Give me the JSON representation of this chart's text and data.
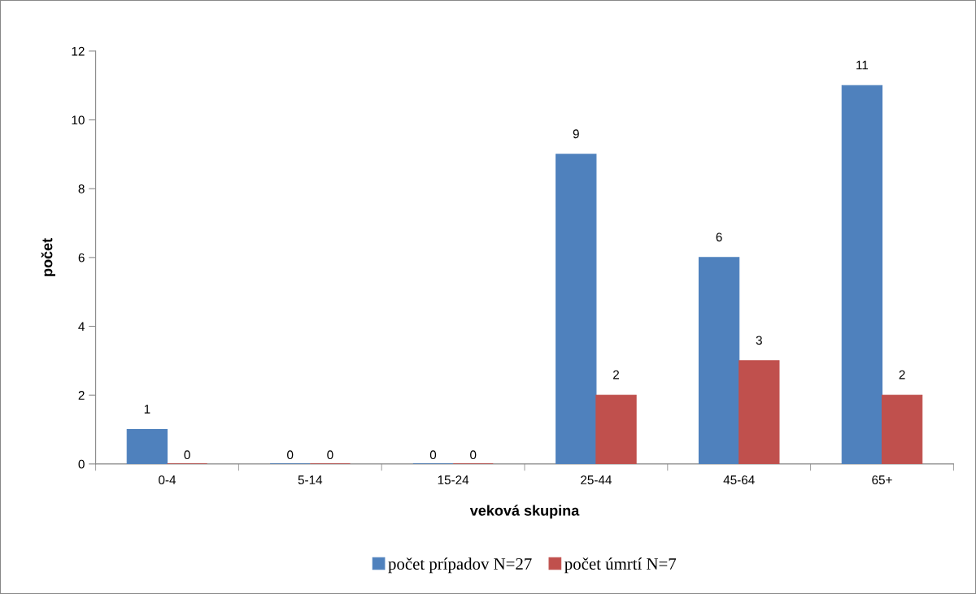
{
  "chart_data": {
    "type": "bar",
    "xlabel": "veková skupina",
    "ylabel": "počet",
    "categories": [
      "0-4",
      "5-14",
      "15-24",
      "25-44",
      "45-64",
      "65+"
    ],
    "series": [
      {
        "name": "počet prípadov N=27",
        "color": "#4f81bd",
        "values": [
          1,
          0,
          0,
          9,
          6,
          11
        ]
      },
      {
        "name": "počet úmrtí N=7",
        "color": "#c0504d",
        "values": [
          0,
          0,
          0,
          2,
          3,
          2
        ]
      }
    ],
    "ylim": [
      0,
      12
    ],
    "yticks": [
      0,
      2,
      4,
      6,
      8,
      10,
      12
    ],
    "grid": false,
    "legend": "bottom",
    "data_labels": true
  }
}
